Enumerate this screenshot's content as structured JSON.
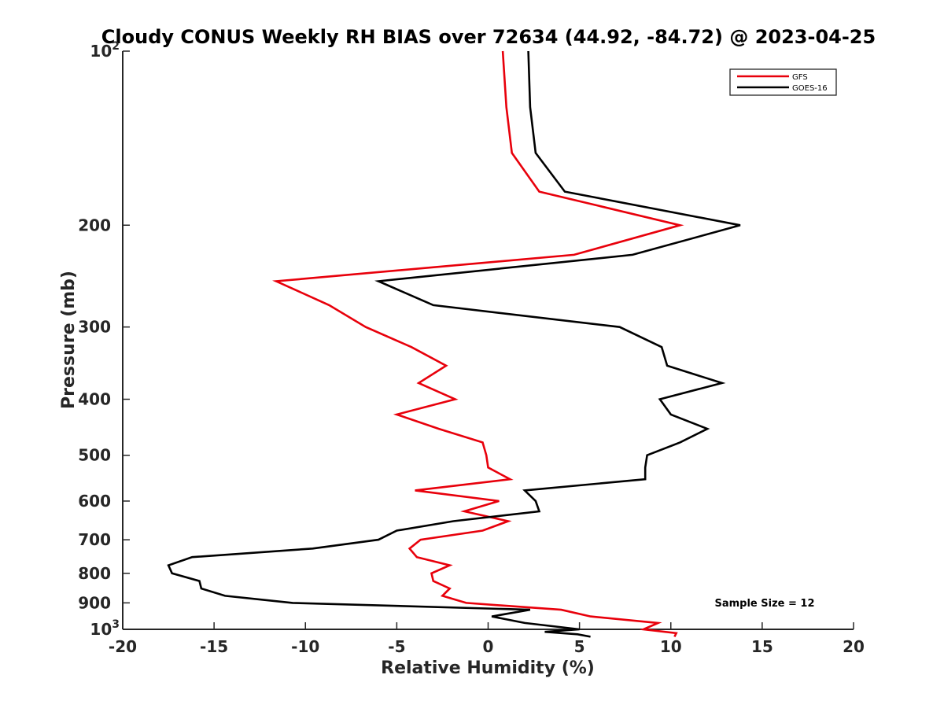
{
  "chart_data": {
    "type": "line",
    "title": "Cloudy CONUS Weekly RH BIAS over 72634 (44.92, -84.72) @ 2023-04-25",
    "xlabel": "Relative Humidity (%)",
    "ylabel": "Pressure (mb)",
    "xlim": [
      -20,
      20
    ],
    "ylim": [
      1000,
      100
    ],
    "y_scale": "log",
    "y_reversed": true,
    "grid": false,
    "legend_position": "top-right",
    "x_ticks": [
      -20,
      -15,
      -10,
      -5,
      0,
      5,
      10,
      15,
      20
    ],
    "y_ticks": [
      {
        "value": 100,
        "base": "10",
        "exp": "2"
      },
      {
        "value": 200,
        "label": "200"
      },
      {
        "value": 300,
        "label": "300"
      },
      {
        "value": 400,
        "label": "400"
      },
      {
        "value": 500,
        "label": "500"
      },
      {
        "value": 600,
        "label": "600"
      },
      {
        "value": 700,
        "label": "700"
      },
      {
        "value": 800,
        "label": "800"
      },
      {
        "value": 900,
        "label": "900"
      },
      {
        "value": 1000,
        "base": "10",
        "exp": "3"
      }
    ],
    "annotation": "Sample Size = 12",
    "series": [
      {
        "name": "GFS",
        "color": "#e8000b",
        "points": [
          [
            0.8,
            100
          ],
          [
            1.0,
            125
          ],
          [
            1.3,
            150
          ],
          [
            2.8,
            175
          ],
          [
            10.5,
            200
          ],
          [
            4.7,
            225
          ],
          [
            -11.6,
            250
          ],
          [
            -8.7,
            275
          ],
          [
            -6.7,
            300
          ],
          [
            -4.2,
            325
          ],
          [
            -2.3,
            350
          ],
          [
            -3.8,
            375
          ],
          [
            -1.8,
            400
          ],
          [
            -5.0,
            425
          ],
          [
            -2.7,
            450
          ],
          [
            -0.3,
            475
          ],
          [
            -0.1,
            500
          ],
          [
            0.0,
            525
          ],
          [
            1.2,
            550
          ],
          [
            -4.0,
            575
          ],
          [
            0.6,
            600
          ],
          [
            -1.3,
            625
          ],
          [
            1.1,
            650
          ],
          [
            -0.3,
            675
          ],
          [
            -3.7,
            700
          ],
          [
            -4.3,
            725
          ],
          [
            -3.9,
            750
          ],
          [
            -2.1,
            775
          ],
          [
            -3.1,
            800
          ],
          [
            -3.0,
            825
          ],
          [
            -2.1,
            850
          ],
          [
            -2.5,
            875
          ],
          [
            -1.2,
            900
          ],
          [
            4.0,
            925
          ],
          [
            5.6,
            950
          ],
          [
            9.3,
            975
          ],
          [
            8.5,
            1000
          ],
          [
            10.3,
            1015
          ],
          [
            10.2,
            1030
          ]
        ]
      },
      {
        "name": "GOES-16",
        "color": "#000000",
        "points": [
          [
            2.2,
            100
          ],
          [
            2.3,
            125
          ],
          [
            2.6,
            150
          ],
          [
            4.2,
            175
          ],
          [
            13.8,
            200
          ],
          [
            7.9,
            225
          ],
          [
            -6.0,
            250
          ],
          [
            -3.0,
            275
          ],
          [
            7.2,
            300
          ],
          [
            9.5,
            325
          ],
          [
            9.8,
            350
          ],
          [
            12.8,
            375
          ],
          [
            9.4,
            400
          ],
          [
            10.0,
            425
          ],
          [
            12.0,
            450
          ],
          [
            10.5,
            475
          ],
          [
            8.7,
            500
          ],
          [
            8.6,
            525
          ],
          [
            8.6,
            550
          ],
          [
            2.0,
            575
          ],
          [
            2.6,
            600
          ],
          [
            2.8,
            625
          ],
          [
            -1.9,
            650
          ],
          [
            -5.0,
            675
          ],
          [
            -6.0,
            700
          ],
          [
            -9.6,
            725
          ],
          [
            -16.2,
            750
          ],
          [
            -17.5,
            775
          ],
          [
            -17.3,
            800
          ],
          [
            -15.8,
            825
          ],
          [
            -15.7,
            850
          ],
          [
            -14.4,
            875
          ],
          [
            -10.7,
            900
          ],
          [
            2.3,
            925
          ],
          [
            0.2,
            950
          ],
          [
            2.0,
            975
          ],
          [
            5.0,
            1000
          ],
          [
            3.1,
            1010
          ],
          [
            4.9,
            1020
          ],
          [
            5.6,
            1030
          ]
        ]
      }
    ]
  }
}
